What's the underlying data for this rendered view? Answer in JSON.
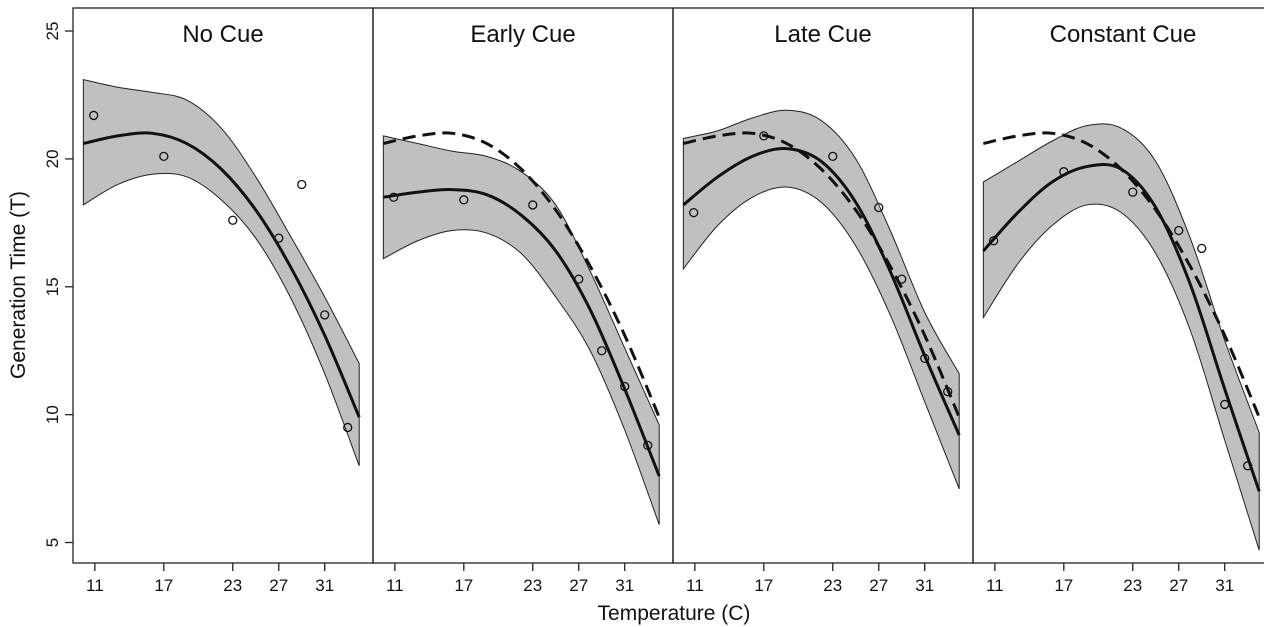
{
  "chart_data": {
    "type": "line",
    "xlabel": "Temperature (C)",
    "ylabel": "Generation Time (T)",
    "ylim": [
      5,
      25
    ],
    "y_ticks": [
      5,
      10,
      15,
      20,
      25
    ],
    "x_ticks": [
      11,
      17,
      23,
      27,
      31
    ],
    "grid": false,
    "panels": [
      {
        "title": "No Cue",
        "points": [
          [
            10.9,
            21.7
          ],
          [
            17,
            20.1
          ],
          [
            23,
            17.6
          ],
          [
            27,
            16.9
          ],
          [
            29,
            19.0
          ],
          [
            31,
            13.9
          ],
          [
            33,
            9.5
          ]
        ],
        "fit": [
          [
            10,
            20.6
          ],
          [
            13,
            20.9
          ],
          [
            16,
            21.0
          ],
          [
            19,
            20.6
          ],
          [
            22,
            19.6
          ],
          [
            25,
            18.0
          ],
          [
            28,
            15.8
          ],
          [
            31,
            13.1
          ],
          [
            34,
            9.9
          ]
        ],
        "ci_upper": [
          [
            10,
            23.1
          ],
          [
            13,
            22.8
          ],
          [
            16,
            22.6
          ],
          [
            19,
            22.3
          ],
          [
            22,
            21.2
          ],
          [
            25,
            19.3
          ],
          [
            28,
            17.0
          ],
          [
            31,
            14.6
          ],
          [
            34,
            12.0
          ]
        ],
        "ci_lower": [
          [
            10,
            18.2
          ],
          [
            13,
            19.0
          ],
          [
            16,
            19.4
          ],
          [
            19,
            19.3
          ],
          [
            22,
            18.4
          ],
          [
            25,
            16.9
          ],
          [
            28,
            14.6
          ],
          [
            31,
            11.6
          ],
          [
            34,
            8.0
          ]
        ],
        "reference": []
      },
      {
        "title": "Early Cue",
        "points": [
          [
            10.9,
            18.5
          ],
          [
            17,
            18.4
          ],
          [
            23,
            18.2
          ],
          [
            27,
            15.3
          ],
          [
            29,
            12.5
          ],
          [
            31,
            11.1
          ],
          [
            33,
            8.8
          ]
        ],
        "fit": [
          [
            10,
            18.5
          ],
          [
            13,
            18.7
          ],
          [
            16,
            18.8
          ],
          [
            19,
            18.6
          ],
          [
            22,
            17.8
          ],
          [
            25,
            16.4
          ],
          [
            28,
            14.1
          ],
          [
            31,
            11.0
          ],
          [
            34,
            7.6
          ]
        ],
        "ci_upper": [
          [
            10,
            20.9
          ],
          [
            13,
            20.6
          ],
          [
            16,
            20.3
          ],
          [
            19,
            20.1
          ],
          [
            22,
            19.5
          ],
          [
            25,
            18.2
          ],
          [
            28,
            15.6
          ],
          [
            31,
            12.6
          ],
          [
            34,
            9.6
          ]
        ],
        "ci_lower": [
          [
            10,
            16.1
          ],
          [
            13,
            16.8
          ],
          [
            16,
            17.2
          ],
          [
            19,
            17.1
          ],
          [
            22,
            16.3
          ],
          [
            25,
            14.6
          ],
          [
            28,
            12.5
          ],
          [
            31,
            9.4
          ],
          [
            34,
            5.7
          ]
        ],
        "reference": [
          [
            10,
            20.6
          ],
          [
            13,
            20.9
          ],
          [
            16,
            21.0
          ],
          [
            19,
            20.6
          ],
          [
            22,
            19.6
          ],
          [
            25,
            18.0
          ],
          [
            28,
            15.8
          ],
          [
            31,
            13.1
          ],
          [
            34,
            9.9
          ]
        ]
      },
      {
        "title": "Late Cue",
        "points": [
          [
            10.9,
            17.9
          ],
          [
            17,
            20.9
          ],
          [
            23,
            20.1
          ],
          [
            27,
            18.1
          ],
          [
            29,
            15.3
          ],
          [
            31,
            12.2
          ],
          [
            33,
            10.9
          ]
        ],
        "fit": [
          [
            10,
            18.2
          ],
          [
            13,
            19.3
          ],
          [
            16,
            20.1
          ],
          [
            19,
            20.4
          ],
          [
            22,
            19.9
          ],
          [
            25,
            18.3
          ],
          [
            28,
            15.6
          ],
          [
            31,
            12.3
          ],
          [
            34,
            9.2
          ]
        ],
        "ci_upper": [
          [
            10,
            20.8
          ],
          [
            13,
            21.1
          ],
          [
            16,
            21.6
          ],
          [
            19,
            21.9
          ],
          [
            22,
            21.5
          ],
          [
            25,
            20.0
          ],
          [
            28,
            17.2
          ],
          [
            31,
            14.0
          ],
          [
            34,
            11.6
          ]
        ],
        "ci_lower": [
          [
            10,
            15.7
          ],
          [
            13,
            17.4
          ],
          [
            16,
            18.5
          ],
          [
            19,
            18.9
          ],
          [
            22,
            18.3
          ],
          [
            25,
            16.6
          ],
          [
            28,
            13.9
          ],
          [
            31,
            10.5
          ],
          [
            34,
            7.1
          ]
        ],
        "reference": [
          [
            10,
            20.6
          ],
          [
            13,
            20.9
          ],
          [
            16,
            21.0
          ],
          [
            19,
            20.6
          ],
          [
            22,
            19.6
          ],
          [
            25,
            18.0
          ],
          [
            28,
            15.8
          ],
          [
            31,
            13.1
          ],
          [
            34,
            9.9
          ]
        ]
      },
      {
        "title": "Constant Cue",
        "points": [
          [
            10.9,
            16.8
          ],
          [
            17,
            19.5
          ],
          [
            23,
            18.7
          ],
          [
            27,
            17.2
          ],
          [
            29,
            16.5
          ],
          [
            31,
            10.4
          ],
          [
            33,
            8.0
          ]
        ],
        "fit": [
          [
            10,
            16.4
          ],
          [
            13,
            17.9
          ],
          [
            16,
            19.1
          ],
          [
            19,
            19.7
          ],
          [
            22,
            19.6
          ],
          [
            25,
            18.1
          ],
          [
            28,
            15.1
          ],
          [
            31,
            11.0
          ],
          [
            34,
            7.0
          ]
        ],
        "ci_upper": [
          [
            10,
            19.1
          ],
          [
            13,
            19.9
          ],
          [
            16,
            20.7
          ],
          [
            19,
            21.3
          ],
          [
            22,
            21.2
          ],
          [
            25,
            19.9
          ],
          [
            28,
            16.9
          ],
          [
            31,
            12.9
          ],
          [
            34,
            9.3
          ]
        ],
        "ci_lower": [
          [
            10,
            13.8
          ],
          [
            13,
            15.9
          ],
          [
            16,
            17.4
          ],
          [
            19,
            18.2
          ],
          [
            22,
            17.9
          ],
          [
            25,
            16.3
          ],
          [
            28,
            13.3
          ],
          [
            31,
            9.0
          ],
          [
            34,
            4.7
          ]
        ],
        "reference": [
          [
            10,
            20.6
          ],
          [
            13,
            20.9
          ],
          [
            16,
            21.0
          ],
          [
            19,
            20.6
          ],
          [
            22,
            19.6
          ],
          [
            25,
            18.0
          ],
          [
            28,
            15.8
          ],
          [
            31,
            13.1
          ],
          [
            34,
            9.9
          ]
        ]
      }
    ]
  }
}
